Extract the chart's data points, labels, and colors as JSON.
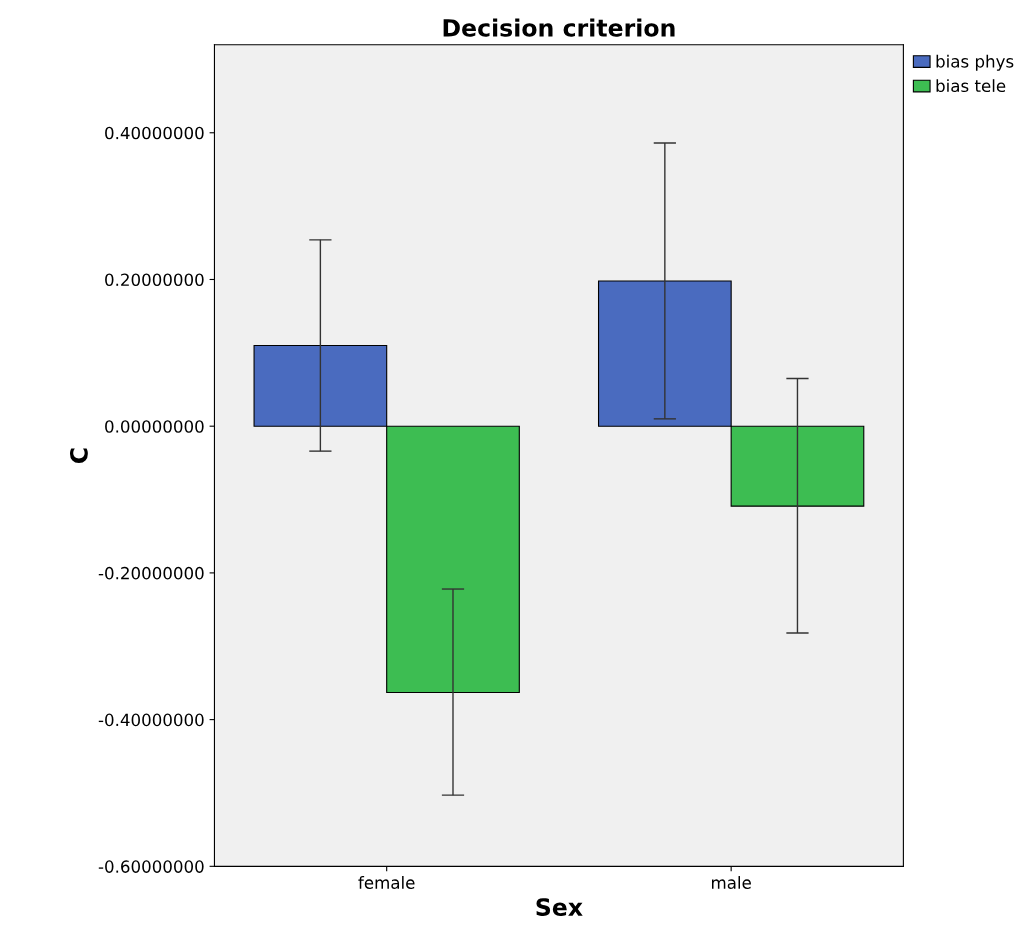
{
  "chart_data": {
    "type": "bar",
    "title": "Decision criterion",
    "xlabel": "Sex",
    "ylabel": "C",
    "categories": [
      "female",
      "male"
    ],
    "series": [
      {
        "name": "bias phys",
        "color": "#4a6bbf",
        "values": [
          0.11,
          0.198
        ],
        "errors": [
          [
            -0.034,
            0.254
          ],
          [
            0.01,
            0.386
          ]
        ]
      },
      {
        "name": "bias tele",
        "color": "#3dbd52",
        "values": [
          -0.363,
          -0.109
        ],
        "errors": [
          [
            -0.503,
            -0.222
          ],
          [
            -0.282,
            0.065
          ]
        ]
      }
    ],
    "ylim": [
      -0.6,
      0.52
    ],
    "yticks": [
      {
        "value": -0.6,
        "label": "-0.60000000"
      },
      {
        "value": -0.4,
        "label": "-0.40000000"
      },
      {
        "value": -0.2,
        "label": "-0.20000000"
      },
      {
        "value": 0,
        "label": "0.00000000"
      },
      {
        "value": 0.2,
        "label": "0.20000000"
      },
      {
        "value": 0.4,
        "label": "0.40000000"
      }
    ],
    "grid": false,
    "legend": "top right"
  }
}
